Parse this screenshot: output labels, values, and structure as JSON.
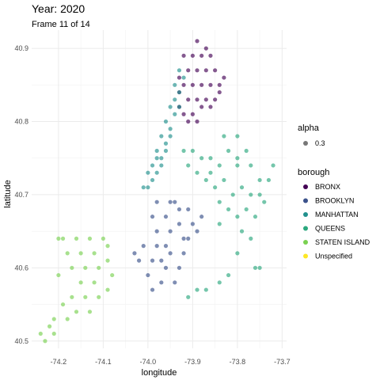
{
  "chart_data": {
    "type": "scatter",
    "title": "Year: 2020",
    "subtitle": "Frame 11 of 14",
    "xlabel": "longitude",
    "ylabel": "latitude",
    "xlim": [
      -74.26,
      -73.69
    ],
    "ylim": [
      40.49,
      40.925
    ],
    "x_ticks": [
      {
        "value": -74.2,
        "label": "-74.2"
      },
      {
        "value": -74.1,
        "label": "-74.1"
      },
      {
        "value": -74.0,
        "label": "-74.0"
      },
      {
        "value": -73.9,
        "label": "-73.9"
      },
      {
        "value": -73.8,
        "label": "-73.8"
      },
      {
        "value": -73.7,
        "label": "-73.7"
      }
    ],
    "y_ticks": [
      {
        "value": 40.5,
        "label": "40.5"
      },
      {
        "value": 40.6,
        "label": "40.6"
      },
      {
        "value": 40.7,
        "label": "40.7"
      },
      {
        "value": 40.8,
        "label": "40.8"
      },
      {
        "value": 40.9,
        "label": "40.9"
      }
    ],
    "grid": true,
    "legend_placement": "right",
    "alpha_legend": {
      "title": "alpha",
      "label": "0.3",
      "color": "#555555"
    },
    "color_legend_title": "borough",
    "series": [
      {
        "name": "BRONX",
        "color": "#440154",
        "points": [
          [
            -73.92,
            40.89
          ],
          [
            -73.9,
            40.89
          ],
          [
            -73.88,
            40.89
          ],
          [
            -73.86,
            40.89
          ],
          [
            -73.91,
            40.87
          ],
          [
            -73.89,
            40.87
          ],
          [
            -73.87,
            40.87
          ],
          [
            -73.85,
            40.87
          ],
          [
            -73.93,
            40.86
          ],
          [
            -73.92,
            40.85
          ],
          [
            -73.9,
            40.85
          ],
          [
            -73.88,
            40.85
          ],
          [
            -73.86,
            40.85
          ],
          [
            -73.84,
            40.85
          ],
          [
            -73.83,
            40.86
          ],
          [
            -73.91,
            40.83
          ],
          [
            -73.89,
            40.83
          ],
          [
            -73.87,
            40.83
          ],
          [
            -73.85,
            40.83
          ],
          [
            -73.93,
            40.84
          ],
          [
            -73.92,
            40.81
          ],
          [
            -73.9,
            40.81
          ],
          [
            -73.88,
            40.82
          ],
          [
            -73.86,
            40.82
          ],
          [
            -73.91,
            40.8
          ],
          [
            -73.89,
            40.8
          ],
          [
            -73.84,
            40.84
          ],
          [
            -73.93,
            40.82
          ],
          [
            -73.87,
            40.9
          ],
          [
            -73.89,
            40.91
          ]
        ]
      },
      {
        "name": "BROOKLYN",
        "color": "#3b528b",
        "points": [
          [
            -73.98,
            40.69
          ],
          [
            -73.95,
            40.69
          ],
          [
            -73.93,
            40.68
          ],
          [
            -73.91,
            40.68
          ],
          [
            -73.99,
            40.67
          ],
          [
            -73.96,
            40.67
          ],
          [
            -73.93,
            40.66
          ],
          [
            -73.9,
            40.66
          ],
          [
            -73.98,
            40.65
          ],
          [
            -73.95,
            40.65
          ],
          [
            -73.92,
            40.64
          ],
          [
            -73.89,
            40.65
          ],
          [
            -74.01,
            40.63
          ],
          [
            -73.98,
            40.63
          ],
          [
            -73.95,
            40.62
          ],
          [
            -73.92,
            40.62
          ],
          [
            -74.02,
            40.61
          ],
          [
            -73.99,
            40.61
          ],
          [
            -73.96,
            40.6
          ],
          [
            -73.93,
            40.6
          ],
          [
            -74.0,
            40.59
          ],
          [
            -73.97,
            40.58
          ],
          [
            -73.94,
            40.58
          ],
          [
            -73.99,
            40.57
          ],
          [
            -73.96,
            40.63
          ],
          [
            -73.91,
            40.64
          ],
          [
            -74.03,
            40.62
          ],
          [
            -73.94,
            40.69
          ],
          [
            -73.88,
            40.67
          ],
          [
            -73.97,
            40.61
          ]
        ]
      },
      {
        "name": "MANHATTAN",
        "color": "#21908d",
        "points": [
          [
            -74.01,
            40.71
          ],
          [
            -73.99,
            40.72
          ],
          [
            -73.98,
            40.73
          ],
          [
            -73.99,
            40.74
          ],
          [
            -73.97,
            40.75
          ],
          [
            -73.98,
            40.76
          ],
          [
            -73.96,
            40.77
          ],
          [
            -73.97,
            40.78
          ],
          [
            -73.95,
            40.79
          ],
          [
            -73.96,
            40.8
          ],
          [
            -73.94,
            40.81
          ],
          [
            -73.95,
            40.82
          ],
          [
            -73.94,
            40.83
          ],
          [
            -73.93,
            40.84
          ],
          [
            -73.94,
            40.85
          ],
          [
            -73.92,
            40.86
          ],
          [
            -73.93,
            40.87
          ],
          [
            -74.0,
            40.73
          ],
          [
            -73.98,
            40.75
          ],
          [
            -73.96,
            40.76
          ],
          [
            -74.0,
            40.71
          ],
          [
            -73.97,
            40.74
          ],
          [
            -73.95,
            40.78
          ],
          [
            -73.93,
            40.82
          ]
        ]
      },
      {
        "name": "QUEENS",
        "color": "#2ba87e",
        "points": [
          [
            -73.92,
            40.76
          ],
          [
            -73.9,
            40.76
          ],
          [
            -73.88,
            40.75
          ],
          [
            -73.86,
            40.75
          ],
          [
            -73.84,
            40.74
          ],
          [
            -73.82,
            40.76
          ],
          [
            -73.8,
            40.75
          ],
          [
            -73.78,
            40.76
          ],
          [
            -73.91,
            40.74
          ],
          [
            -73.89,
            40.73
          ],
          [
            -73.87,
            40.72
          ],
          [
            -73.85,
            40.71
          ],
          [
            -73.83,
            40.72
          ],
          [
            -73.81,
            40.7
          ],
          [
            -73.79,
            40.71
          ],
          [
            -73.77,
            40.7
          ],
          [
            -73.75,
            40.72
          ],
          [
            -73.84,
            40.69
          ],
          [
            -73.82,
            40.68
          ],
          [
            -73.8,
            40.67
          ],
          [
            -73.78,
            40.68
          ],
          [
            -73.76,
            40.67
          ],
          [
            -73.74,
            40.69
          ],
          [
            -73.8,
            40.74
          ],
          [
            -73.83,
            40.78
          ],
          [
            -73.8,
            40.78
          ],
          [
            -73.77,
            40.74
          ],
          [
            -73.75,
            40.7
          ],
          [
            -73.79,
            40.65
          ],
          [
            -73.77,
            40.64
          ],
          [
            -73.8,
            40.62
          ],
          [
            -73.76,
            40.6
          ],
          [
            -73.75,
            40.6
          ],
          [
            -73.82,
            40.59
          ],
          [
            -73.84,
            40.58
          ],
          [
            -73.87,
            40.57
          ],
          [
            -73.89,
            40.57
          ],
          [
            -73.91,
            40.56
          ],
          [
            -73.84,
            40.66
          ],
          [
            -73.86,
            40.73
          ],
          [
            -73.73,
            40.72
          ],
          [
            -73.72,
            40.74
          ]
        ]
      },
      {
        "name": "STATEN ISLAND",
        "color": "#7ad151",
        "points": [
          [
            -74.19,
            40.64
          ],
          [
            -74.16,
            40.64
          ],
          [
            -74.13,
            40.64
          ],
          [
            -74.1,
            40.64
          ],
          [
            -74.09,
            40.63
          ],
          [
            -74.18,
            40.62
          ],
          [
            -74.15,
            40.62
          ],
          [
            -74.12,
            40.62
          ],
          [
            -74.09,
            40.61
          ],
          [
            -74.17,
            40.6
          ],
          [
            -74.14,
            40.6
          ],
          [
            -74.11,
            40.6
          ],
          [
            -74.08,
            40.59
          ],
          [
            -74.15,
            40.58
          ],
          [
            -74.12,
            40.58
          ],
          [
            -74.09,
            40.57
          ],
          [
            -74.17,
            40.56
          ],
          [
            -74.14,
            40.56
          ],
          [
            -74.11,
            40.56
          ],
          [
            -74.19,
            40.55
          ],
          [
            -74.16,
            40.54
          ],
          [
            -74.13,
            40.54
          ],
          [
            -74.21,
            40.53
          ],
          [
            -74.18,
            40.53
          ],
          [
            -74.22,
            40.52
          ],
          [
            -74.24,
            40.51
          ],
          [
            -74.23,
            40.5
          ],
          [
            -74.21,
            40.51
          ],
          [
            -74.2,
            40.64
          ],
          [
            -74.2,
            40.59
          ]
        ]
      },
      {
        "name": "Unspecified",
        "color": "#fde725",
        "points": []
      }
    ]
  }
}
